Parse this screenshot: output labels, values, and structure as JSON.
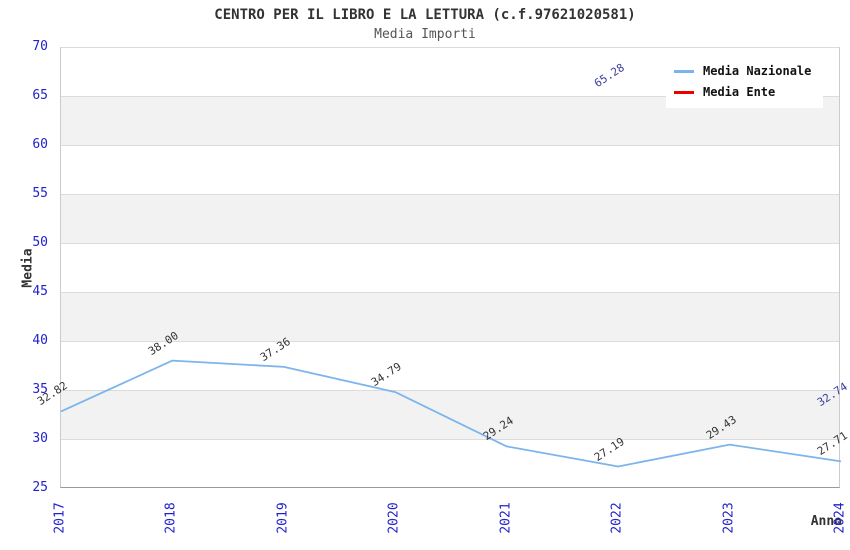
{
  "title": "CENTRO PER IL LIBRO E LA LETTURA (c.f.97621020581)",
  "subtitle": "Media Importi",
  "legend": {
    "position": "top-right",
    "items": [
      {
        "label": "Media Nazionale",
        "color": "#7cb5ec"
      },
      {
        "label": "Media Ente",
        "color": "#ee0000"
      }
    ]
  },
  "chart_data": {
    "type": "line",
    "title": "CENTRO PER IL LIBRO E LA LETTURA (c.f.97621020581)",
    "subtitle": "Media Importi",
    "xlabel": "Anno",
    "ylabel": "Media",
    "x": [
      "2017",
      "2018",
      "2019",
      "2020",
      "2021",
      "2022",
      "2023",
      "2024"
    ],
    "ylim": [
      25,
      70
    ],
    "y_ticks": [
      70,
      65,
      60,
      55,
      50,
      45,
      40,
      35,
      30,
      25
    ],
    "grid": "horizontal gridlines with alternating background bands",
    "band_colors": [
      "#ffffff",
      "#f2f2f2"
    ],
    "tick_label_color": "#2222cc",
    "legend_position": "top-right",
    "series": [
      {
        "name": "Media Nazionale",
        "color": "#7cb5ec",
        "label_color": "#333333",
        "values": [
          32.82,
          38.0,
          37.36,
          34.79,
          29.24,
          27.19,
          29.43,
          27.71
        ]
      },
      {
        "name": "Media Ente",
        "color": "#ee0000",
        "label_color": "#3a3a9e",
        "values": [
          null,
          null,
          null,
          null,
          null,
          65.28,
          null,
          32.74
        ]
      }
    ]
  }
}
